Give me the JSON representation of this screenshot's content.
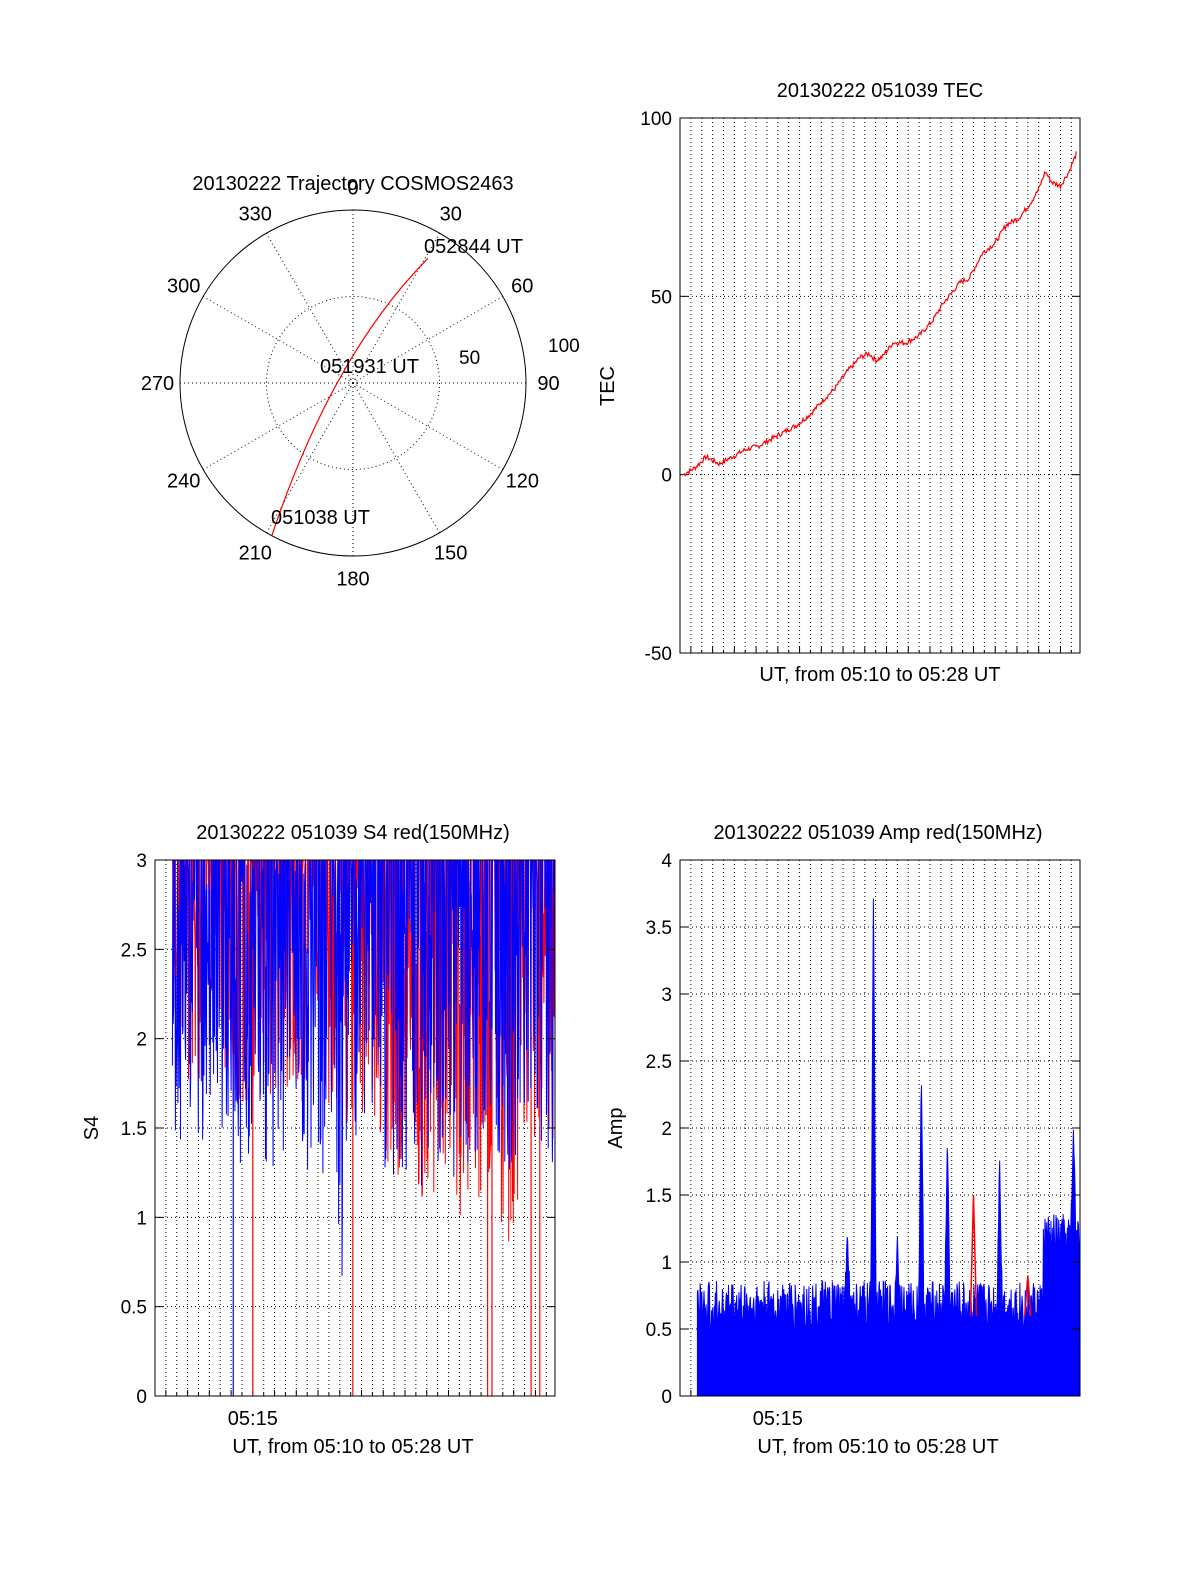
{
  "colors": {
    "red": "#ff0000",
    "blue": "#0000ff",
    "axis": "#000000"
  },
  "chart_data": [
    {
      "id": "polar",
      "type": "polar",
      "title": "20130222 Trajectory COSMOS2463",
      "azimuth_labels": [
        "0",
        "30",
        "60",
        "90",
        "120",
        "150",
        "180",
        "210",
        "240",
        "270",
        "300",
        "330"
      ],
      "azimuth_values": [
        0,
        30,
        60,
        90,
        120,
        150,
        180,
        210,
        240,
        270,
        300,
        330
      ],
      "radial_labels": [
        "50",
        "100"
      ],
      "radial_values": [
        50,
        100
      ],
      "rmax": 100,
      "track": {
        "color": "#ff0000",
        "start": {
          "azimuth": 208,
          "r": 100
        },
        "end": {
          "azimuth": 31,
          "r": 84
        },
        "closest_approach_r": 8
      },
      "annotations": [
        {
          "text": "052844 UT",
          "azimuth": 31,
          "r": 84
        },
        {
          "text": "051931 UT",
          "azimuth": 330,
          "r": 15
        },
        {
          "text": "051038 UT",
          "azimuth": 208,
          "r": 100
        }
      ]
    },
    {
      "id": "tec",
      "type": "line",
      "title": "20130222 051039 TEC",
      "xlabel": "UT, from 05:10 to 05:28 UT",
      "ylabel": "TEC",
      "ylim": [
        -50,
        100
      ],
      "yticks": [
        "-50",
        "0",
        "50",
        "100"
      ],
      "ytick_values": [
        -50,
        0,
        50,
        100
      ],
      "xlim_minutes": [
        10.5,
        28.9
      ],
      "data_start_minutes": 10.65,
      "data_end_minutes": 28.73,
      "grid": true,
      "series": [
        {
          "color": "#ff0000",
          "x": [
            10.65,
            11.2,
            11.7,
            12.3,
            12.9,
            13.5,
            14.1,
            14.7,
            15.3,
            15.9,
            16.5,
            17.1,
            17.6,
            18.2,
            18.8,
            19.2,
            19.5,
            19.8,
            20.3,
            20.9,
            21.5,
            22.1,
            22.6,
            23.0,
            23.4,
            23.8,
            24.4,
            25.0,
            25.5,
            26.1,
            26.6,
            27.0,
            27.3,
            27.6,
            28.0,
            28.4,
            28.73
          ],
          "y": [
            0,
            2,
            5,
            3,
            5,
            7,
            8,
            10,
            12,
            14,
            17,
            21,
            24,
            29,
            33,
            34,
            32,
            33,
            37,
            37,
            39,
            43,
            48,
            51,
            54,
            55,
            62,
            65,
            70,
            72,
            76,
            80,
            85,
            82,
            81,
            85,
            90
          ]
        }
      ]
    },
    {
      "id": "s4",
      "type": "line",
      "title": "20130222 051039 S4 red(150MHz)",
      "xlabel": "UT, from 05:10 to 05:28 UT",
      "ylabel": "S4",
      "ylim": [
        0,
        3
      ],
      "yticks": [
        "0",
        "0.5",
        "1",
        "1.5",
        "2",
        "2.5",
        "3"
      ],
      "ytick_values": [
        0,
        0.5,
        1,
        1.5,
        2,
        2.5,
        3
      ],
      "xtick_label": "05:15",
      "xtick_value": 15,
      "xlim_minutes": [
        10.5,
        28.9
      ],
      "data_start_minutes": 11.3,
      "data_end_minutes": 28.9,
      "grid": true,
      "series": [
        {
          "name": "",
          "color": "#ff0000",
          "x": [
            11.3,
            12.2,
            13.1,
            14.0,
            14.6,
            15.1,
            15.9,
            16.8,
            17.7,
            18.6,
            19.5,
            20.4,
            21.3,
            22.2,
            23.1,
            23.8,
            24.5,
            25.3,
            26.0,
            26.7,
            27.3,
            27.8,
            28.3,
            28.9
          ],
          "y": [
            2.3,
            1.9,
            2.1,
            1.8,
            1.6,
            2.0,
            1.9,
            2.0,
            1.8,
            1.9,
            1.7,
            1.8,
            1.4,
            1.6,
            1.2,
            1.4,
            1.1,
            1.3,
            1.5,
            1.0,
            1.3,
            1.6,
            1.8,
            1.5
          ],
          "dropouts_minutes": [
            15.0,
            19.6,
            25.8,
            26.0,
            27.8,
            28.2
          ]
        },
        {
          "name": "",
          "color": "#0000ff",
          "x": [
            11.3,
            12.2,
            13.1,
            14.0,
            14.6,
            15.1,
            15.9,
            16.8,
            17.7,
            18.6,
            19.2,
            19.5,
            20.4,
            21.3,
            22.2,
            23.1,
            23.8,
            24.5,
            25.3,
            26.0,
            26.7,
            27.3,
            27.8,
            28.3,
            28.9
          ],
          "y": [
            1.6,
            1.8,
            1.5,
            1.7,
            1.4,
            1.6,
            1.5,
            1.7,
            1.4,
            1.5,
            0.75,
            1.6,
            1.7,
            1.4,
            1.5,
            1.3,
            1.5,
            1.4,
            1.6,
            1.5,
            1.3,
            1.5,
            1.6,
            1.5,
            1.3
          ],
          "dropouts_minutes": [
            14.1
          ]
        }
      ]
    },
    {
      "id": "amp",
      "type": "line",
      "title": "20130222 051039 Amp red(150MHz)",
      "xlabel": "UT, from 05:10 to 05:28 UT",
      "ylabel": "Amp",
      "ylim": [
        0,
        4
      ],
      "yticks": [
        "0",
        "0.5",
        "1",
        "1.5",
        "2",
        "2.5",
        "3",
        "3.5",
        "4"
      ],
      "ytick_values": [
        0,
        0.5,
        1,
        1.5,
        2,
        2.5,
        3,
        3.5,
        4
      ],
      "xtick_label": "05:15",
      "xtick_value": 15,
      "xlim_minutes": [
        10.5,
        28.9
      ],
      "data_start_minutes": 11.3,
      "data_end_minutes": 28.9,
      "grid": true,
      "series": [
        {
          "name": "",
          "color": "#0000ff",
          "baseline": 0.6,
          "noise": 0.2,
          "late_baseline": 1.1,
          "late_from_minutes": 27.2,
          "peaks": [
            {
              "x": 18.2,
              "y": 1.25
            },
            {
              "x": 19.4,
              "y": 3.82
            },
            {
              "x": 20.5,
              "y": 1.2
            },
            {
              "x": 21.6,
              "y": 2.45
            },
            {
              "x": 22.8,
              "y": 1.95
            },
            {
              "x": 25.2,
              "y": 1.8
            },
            {
              "x": 28.6,
              "y": 2.0
            }
          ]
        },
        {
          "name": "",
          "color": "#ff0000",
          "peaks": [
            {
              "x": 24.0,
              "y": 1.5
            },
            {
              "x": 26.5,
              "y": 0.9
            }
          ]
        }
      ]
    }
  ]
}
